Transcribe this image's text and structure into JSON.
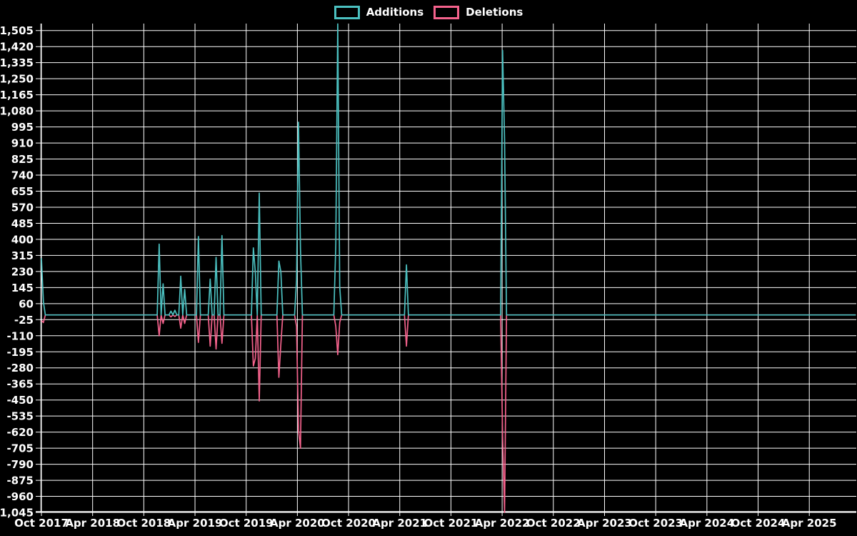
{
  "page": {
    "background": "#000000"
  },
  "legend": {
    "position": "top",
    "items": [
      {
        "label": "Additions",
        "color": "#4bc0c0"
      },
      {
        "label": "Deletions",
        "color": "#f4628c"
      }
    ]
  },
  "chart_data": {
    "type": "line",
    "title": "",
    "xlabel": "",
    "ylabel": "",
    "grid": true,
    "legend_position": "top",
    "background_color": "#000000",
    "gridline_color": "#ffffff",
    "text_color": "#ffffff",
    "y_axis": {
      "min": -1045,
      "max": 1505,
      "tick_step": 85,
      "tick_labels": [
        "1,505",
        "1,420",
        "1,335",
        "1,250",
        "1,165",
        "1,080",
        "995",
        "910",
        "825",
        "740",
        "655",
        "570",
        "485",
        "400",
        "315",
        "230",
        "145",
        "60",
        "-25",
        "-110",
        "-195",
        "-280",
        "-365",
        "-450",
        "-535",
        "-620",
        "-705",
        "-790",
        "-875",
        "-960",
        "-1,045"
      ]
    },
    "x_axis": {
      "start_date": "2017-10-01",
      "end_date": "2025-09-14",
      "months_per_tick": 6,
      "tick_labels": [
        "Oct 2017",
        "Apr 2018",
        "Oct 2018",
        "Apr 2019",
        "Oct 2019",
        "Apr 2020",
        "Oct 2020",
        "Apr 2021",
        "Oct 2021",
        "Apr 2022",
        "Oct 2022",
        "Apr 2023",
        "Oct 2023",
        "Apr 2024",
        "Oct 2024",
        "Apr 2025"
      ]
    },
    "series": [
      {
        "name": "Additions",
        "color": "#4bc0c0",
        "baseline": 0
      },
      {
        "name": "Deletions",
        "color": "#f4628c",
        "baseline": 0
      }
    ],
    "weekly_points_note": "weeks not listed have additions 0 and deletions 0; deletions plotted as negative values",
    "weekly_points": [
      {
        "week": "2017-10-01",
        "additions": 300,
        "deletions": -30
      },
      {
        "week": "2017-10-08",
        "additions": 70,
        "deletions": -40
      },
      {
        "week": "2018-11-25",
        "additions": 375,
        "deletions": -110
      },
      {
        "week": "2018-12-09",
        "additions": 165,
        "deletions": -45
      },
      {
        "week": "2019-01-06",
        "additions": 20,
        "deletions": -10
      },
      {
        "week": "2019-01-20",
        "additions": 25,
        "deletions": -8
      },
      {
        "week": "2019-02-10",
        "additions": 205,
        "deletions": -70
      },
      {
        "week": "2019-02-24",
        "additions": 135,
        "deletions": -45
      },
      {
        "week": "2019-04-14",
        "additions": 415,
        "deletions": -145
      },
      {
        "week": "2019-05-26",
        "additions": 190,
        "deletions": -165
      },
      {
        "week": "2019-06-16",
        "additions": 305,
        "deletions": -180
      },
      {
        "week": "2019-07-07",
        "additions": 420,
        "deletions": -150
      },
      {
        "week": "2019-10-27",
        "additions": 355,
        "deletions": -270
      },
      {
        "week": "2019-11-03",
        "additions": 225,
        "deletions": -230
      },
      {
        "week": "2019-11-17",
        "additions": 645,
        "deletions": -455
      },
      {
        "week": "2020-01-26",
        "additions": 285,
        "deletions": -330
      },
      {
        "week": "2020-02-02",
        "additions": 230,
        "deletions": -155
      },
      {
        "week": "2020-03-29",
        "additions": 185,
        "deletions": -60
      },
      {
        "week": "2020-04-05",
        "additions": 1020,
        "deletions": -610
      },
      {
        "week": "2020-04-12",
        "additions": 350,
        "deletions": -705
      },
      {
        "week": "2020-08-16",
        "additions": 370,
        "deletions": -60
      },
      {
        "week": "2020-08-23",
        "additions": 1540,
        "deletions": -210
      },
      {
        "week": "2020-08-30",
        "additions": 150,
        "deletions": -40
      },
      {
        "week": "2021-04-25",
        "additions": 265,
        "deletions": -165
      },
      {
        "week": "2022-04-03",
        "additions": 1400,
        "deletions": -640
      },
      {
        "week": "2022-04-10",
        "additions": 930,
        "deletions": -1045
      }
    ]
  }
}
